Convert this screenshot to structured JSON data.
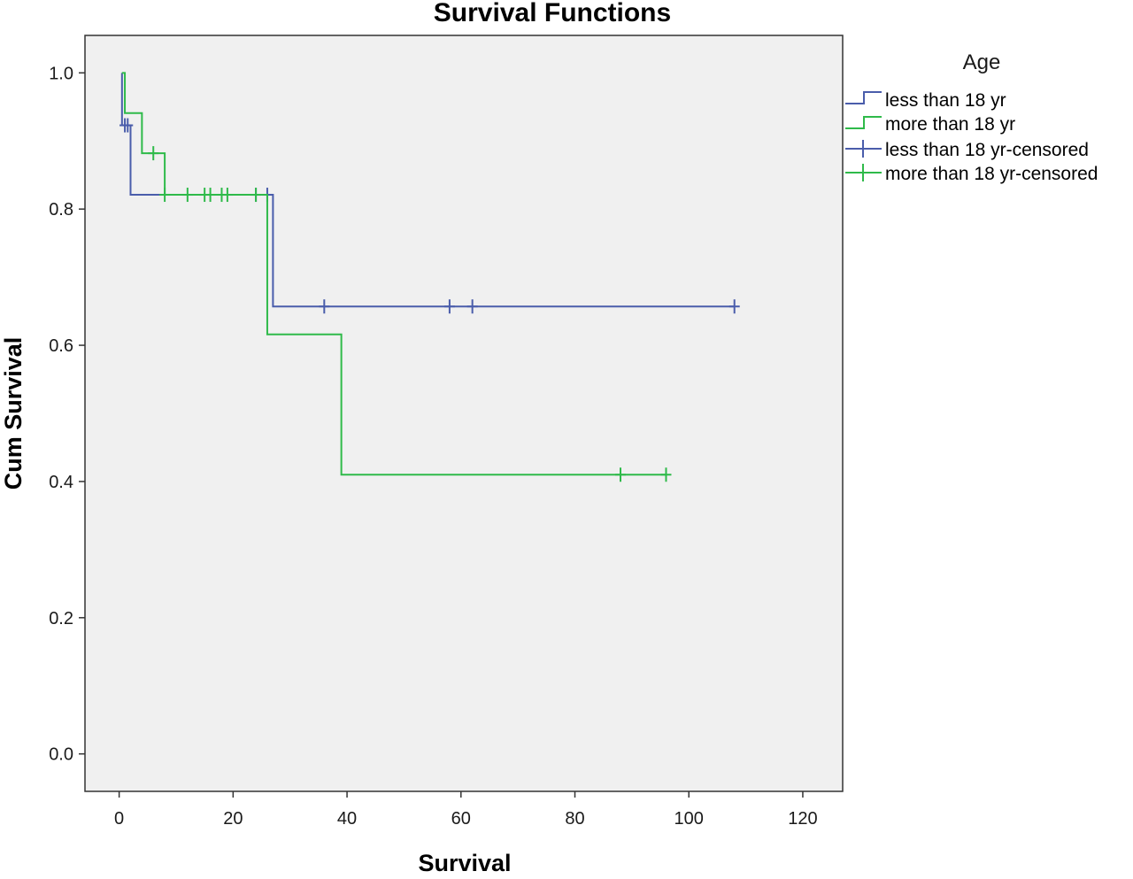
{
  "chart_data": {
    "type": "line",
    "title": "Survival Functions",
    "xlabel": "Survival",
    "ylabel": "Cum Survival",
    "xlim": [
      -6,
      127
    ],
    "ylim": [
      -0.055,
      1.055
    ],
    "xticks": [
      0,
      20,
      40,
      60,
      80,
      100,
      120
    ],
    "yticks": [
      0.0,
      0.2,
      0.4,
      0.6,
      0.8,
      1.0
    ],
    "xtick_labels": [
      "0",
      "20",
      "40",
      "60",
      "80",
      "100",
      "120"
    ],
    "ytick_labels": [
      "0.0",
      "0.2",
      "0.4",
      "0.6",
      "0.8",
      "1.0"
    ],
    "grid": false,
    "legend_title": "Age",
    "legend_position": "right",
    "series": [
      {
        "name": "less than 18 yr",
        "censored_name": "less than 18 yr-censored",
        "color": "#4a5dab",
        "steps": [
          [
            0.5,
            1.0
          ],
          [
            0.5,
            0.923
          ],
          [
            2,
            0.923
          ],
          [
            2,
            0.821
          ],
          [
            27,
            0.821
          ],
          [
            27,
            0.657
          ],
          [
            108,
            0.657
          ]
        ],
        "censored": [
          [
            1,
            0.923
          ],
          [
            1.5,
            0.923
          ],
          [
            24,
            0.821
          ],
          [
            26,
            0.821
          ],
          [
            36,
            0.657
          ],
          [
            58,
            0.657
          ],
          [
            62,
            0.657
          ],
          [
            108,
            0.657
          ]
        ]
      },
      {
        "name": "more than 18 yr",
        "censored_name": "more than 18 yr-censored",
        "color": "#2fba4a",
        "steps": [
          [
            0.5,
            1.0
          ],
          [
            1,
            1.0
          ],
          [
            1,
            0.941
          ],
          [
            4,
            0.941
          ],
          [
            4,
            0.882
          ],
          [
            8,
            0.882
          ],
          [
            8,
            0.821
          ],
          [
            26,
            0.821
          ],
          [
            26,
            0.616
          ],
          [
            39,
            0.616
          ],
          [
            39,
            0.41
          ],
          [
            96,
            0.41
          ]
        ],
        "censored": [
          [
            6,
            0.882
          ],
          [
            8,
            0.821
          ],
          [
            12,
            0.821
          ],
          [
            15,
            0.821
          ],
          [
            16,
            0.821
          ],
          [
            18,
            0.821
          ],
          [
            19,
            0.821
          ],
          [
            24,
            0.821
          ],
          [
            88,
            0.41
          ],
          [
            96,
            0.41
          ]
        ]
      }
    ]
  }
}
